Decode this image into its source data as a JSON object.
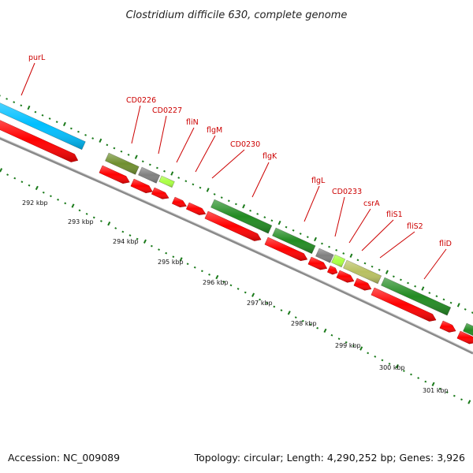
{
  "title": "Clostridium difficile 630, complete genome",
  "footer": {
    "accession": "Accession: NC_009089",
    "summary": "Topology: circular; Length: 4,290,252 bp; Genes: 3,926"
  },
  "colors": {
    "label": "#cc0000",
    "leader": "#cc0000",
    "cds": "#ff0000",
    "backbone": "#9a9a9a",
    "ticks": "#1a7a1a",
    "cyan": "#00bfff",
    "olive": "#6f8f2f",
    "gray": "#808080",
    "lime": "#aaff44",
    "green": "#228b22",
    "khaki": "#b8c060"
  },
  "gene_labels": [
    {
      "text": "purL"
    },
    {
      "text": "CD0226"
    },
    {
      "text": "CD0227"
    },
    {
      "text": "fliN"
    },
    {
      "text": "flgM"
    },
    {
      "text": "CD0230"
    },
    {
      "text": "flgK"
    },
    {
      "text": "flgL"
    },
    {
      "text": "CD0233"
    },
    {
      "text": "csrA"
    },
    {
      "text": "fliS1"
    },
    {
      "text": "fliS2"
    },
    {
      "text": "fliD"
    }
  ],
  "kbp_labels": [
    "292 kbp",
    "293 kbp",
    "294 kbp",
    "295 kbp",
    "296 kbp",
    "297 kbp",
    "298 kbp",
    "299 kbp",
    "300 kbp",
    "301 kbp"
  ]
}
